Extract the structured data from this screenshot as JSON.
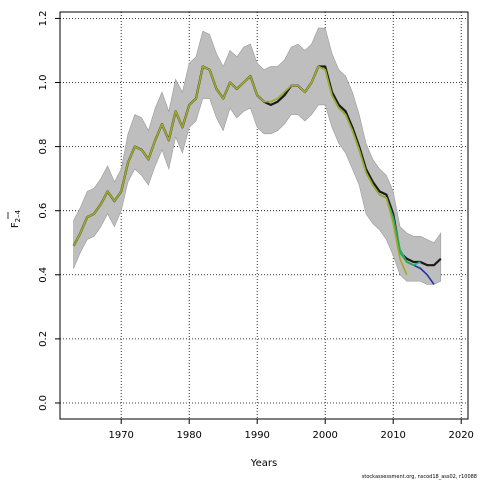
{
  "chart_data": {
    "type": "line",
    "title": "",
    "xlabel": "Years",
    "ylabel_main": "F",
    "ylabel_sub": "2–4",
    "xlim": [
      1961,
      2021
    ],
    "ylim": [
      -0.05,
      1.22
    ],
    "grid": true,
    "x_ticks": [
      1970,
      1980,
      1990,
      2000,
      2010,
      2020
    ],
    "y_ticks": [
      0.0,
      0.2,
      0.4,
      0.6,
      0.8,
      1.0,
      1.2
    ],
    "x_tick_labels": [
      "1970",
      "1980",
      "1990",
      "2000",
      "2010",
      "2020"
    ],
    "y_tick_labels": [
      "0.0",
      "0.2",
      "0.4",
      "0.6",
      "0.8",
      "1.0",
      "1.2"
    ],
    "band": {
      "x": [
        1963,
        1964,
        1965,
        1966,
        1967,
        1968,
        1969,
        1970,
        1971,
        1972,
        1973,
        1974,
        1975,
        1976,
        1977,
        1978,
        1979,
        1980,
        1981,
        1982,
        1983,
        1984,
        1985,
        1986,
        1987,
        1988,
        1989,
        1990,
        1991,
        1992,
        1993,
        1994,
        1995,
        1996,
        1997,
        1998,
        1999,
        2000,
        2001,
        2002,
        2003,
        2004,
        2005,
        2006,
        2007,
        2008,
        2009,
        2010,
        2011,
        2012,
        2013,
        2014,
        2015,
        2016,
        2017
      ],
      "upper": [
        0.57,
        0.61,
        0.66,
        0.67,
        0.7,
        0.74,
        0.69,
        0.73,
        0.84,
        0.9,
        0.89,
        0.85,
        0.92,
        0.97,
        0.91,
        1.01,
        0.97,
        1.06,
        1.08,
        1.16,
        1.15,
        1.09,
        1.05,
        1.1,
        1.08,
        1.11,
        1.12,
        1.06,
        1.04,
        1.05,
        1.05,
        1.07,
        1.11,
        1.12,
        1.1,
        1.12,
        1.17,
        1.17,
        1.09,
        1.04,
        1.02,
        0.97,
        0.9,
        0.81,
        0.76,
        0.73,
        0.71,
        0.66,
        0.55,
        0.53,
        0.52,
        0.52,
        0.51,
        0.5,
        0.53
      ],
      "lower": [
        0.42,
        0.47,
        0.51,
        0.52,
        0.55,
        0.59,
        0.55,
        0.6,
        0.69,
        0.73,
        0.71,
        0.68,
        0.74,
        0.79,
        0.73,
        0.83,
        0.78,
        0.86,
        0.88,
        0.95,
        0.95,
        0.89,
        0.85,
        0.92,
        0.89,
        0.91,
        0.92,
        0.86,
        0.84,
        0.84,
        0.85,
        0.87,
        0.9,
        0.9,
        0.88,
        0.9,
        0.93,
        0.93,
        0.86,
        0.81,
        0.78,
        0.73,
        0.68,
        0.59,
        0.56,
        0.54,
        0.51,
        0.46,
        0.4,
        0.38,
        0.38,
        0.38,
        0.37,
        0.37,
        0.38
      ]
    },
    "series": [
      {
        "color": "#1a1a1a",
        "width": 2.2,
        "x": [
          1963,
          1964,
          1965,
          1966,
          1967,
          1968,
          1969,
          1970,
          1971,
          1972,
          1973,
          1974,
          1975,
          1976,
          1977,
          1978,
          1979,
          1980,
          1981,
          1982,
          1983,
          1984,
          1985,
          1986,
          1987,
          1988,
          1989,
          1990,
          1991,
          1992,
          1993,
          1994,
          1995,
          1996,
          1997,
          1998,
          1999,
          2000,
          2001,
          2002,
          2003,
          2004,
          2005,
          2006,
          2007,
          2008,
          2009,
          2010,
          2011,
          2012,
          2013,
          2014,
          2015,
          2016,
          2017
        ],
        "values": [
          0.49,
          0.53,
          0.58,
          0.59,
          0.62,
          0.66,
          0.63,
          0.66,
          0.75,
          0.8,
          0.79,
          0.76,
          0.82,
          0.87,
          0.82,
          0.91,
          0.86,
          0.93,
          0.95,
          1.05,
          1.04,
          0.98,
          0.95,
          1.0,
          0.98,
          1.0,
          1.02,
          0.96,
          0.94,
          0.93,
          0.94,
          0.96,
          0.99,
          0.99,
          0.97,
          1.0,
          1.05,
          1.05,
          0.97,
          0.93,
          0.91,
          0.86,
          0.8,
          0.73,
          0.69,
          0.66,
          0.65,
          0.59,
          0.47,
          0.45,
          0.44,
          0.44,
          0.43,
          0.43,
          0.45
        ]
      },
      {
        "color": "#2233aa",
        "width": 1.6,
        "x": [
          2008,
          2009,
          2010,
          2011,
          2012,
          2013,
          2014,
          2015,
          2016
        ],
        "values": [
          0.65,
          0.64,
          0.58,
          0.47,
          0.44,
          0.43,
          0.42,
          0.4,
          0.37
        ]
      },
      {
        "color": "#1ab0a0",
        "width": 1.6,
        "x": [
          2000,
          2001,
          2002,
          2003,
          2004,
          2005,
          2006,
          2007,
          2008,
          2009,
          2010,
          2011,
          2012,
          2013,
          2014
        ],
        "values": [
          1.04,
          0.96,
          0.92,
          0.9,
          0.85,
          0.79,
          0.72,
          0.68,
          0.65,
          0.64,
          0.58,
          0.48,
          0.44,
          0.43,
          0.44
        ]
      },
      {
        "color": "#2ea83a",
        "width": 1.6,
        "x": [
          1963,
          1964,
          1965,
          1966,
          1967,
          1968,
          1969,
          1970,
          1971,
          1972,
          1973,
          1974,
          1975,
          1976,
          1977,
          1978,
          1979,
          1980,
          1981,
          1982,
          1983,
          1984,
          1985,
          1986,
          1987,
          1988,
          1989,
          1990,
          1991,
          1992,
          1993,
          1994,
          1995,
          1996,
          1997,
          1998,
          1999,
          2000,
          2001,
          2002,
          2003,
          2004,
          2005,
          2006,
          2007,
          2008,
          2009,
          2010,
          2011,
          2012,
          2013
        ],
        "values": [
          0.49,
          0.53,
          0.58,
          0.59,
          0.62,
          0.66,
          0.63,
          0.66,
          0.75,
          0.8,
          0.79,
          0.76,
          0.82,
          0.87,
          0.82,
          0.91,
          0.86,
          0.93,
          0.95,
          1.05,
          1.04,
          0.98,
          0.95,
          1.0,
          0.98,
          1.0,
          1.02,
          0.96,
          0.94,
          0.94,
          0.95,
          0.97,
          0.99,
          0.99,
          0.97,
          1.0,
          1.05,
          1.04,
          0.96,
          0.92,
          0.9,
          0.85,
          0.79,
          0.72,
          0.68,
          0.65,
          0.64,
          0.57,
          0.47,
          0.44,
          0.43
        ]
      },
      {
        "color": "#a8a828",
        "width": 1.6,
        "x": [
          1963,
          1964,
          1965,
          1966,
          1967,
          1968,
          1969,
          1970,
          1971,
          1972,
          1973,
          1974,
          1975,
          1976,
          1977,
          1978,
          1979,
          1980,
          1981,
          1982,
          1983,
          1984,
          1985,
          1986,
          1987,
          1988,
          1989,
          1990,
          1991,
          1992,
          1993,
          1994,
          1995,
          1996,
          1997,
          1998,
          1999,
          2000,
          2001,
          2002,
          2003,
          2004,
          2005,
          2006,
          2007,
          2008,
          2009,
          2010,
          2011,
          2012
        ],
        "values": [
          0.49,
          0.53,
          0.58,
          0.59,
          0.62,
          0.66,
          0.63,
          0.66,
          0.75,
          0.8,
          0.79,
          0.76,
          0.82,
          0.87,
          0.82,
          0.91,
          0.86,
          0.93,
          0.95,
          1.05,
          1.04,
          0.98,
          0.95,
          1.0,
          0.98,
          1.0,
          1.02,
          0.96,
          0.94,
          0.94,
          0.95,
          0.97,
          0.99,
          0.99,
          0.97,
          1.0,
          1.05,
          1.04,
          0.96,
          0.92,
          0.9,
          0.85,
          0.79,
          0.72,
          0.68,
          0.65,
          0.64,
          0.56,
          0.45,
          0.4
        ]
      }
    ],
    "footer_note": "stockassessment.org, nscod18_ass02, r10088"
  }
}
